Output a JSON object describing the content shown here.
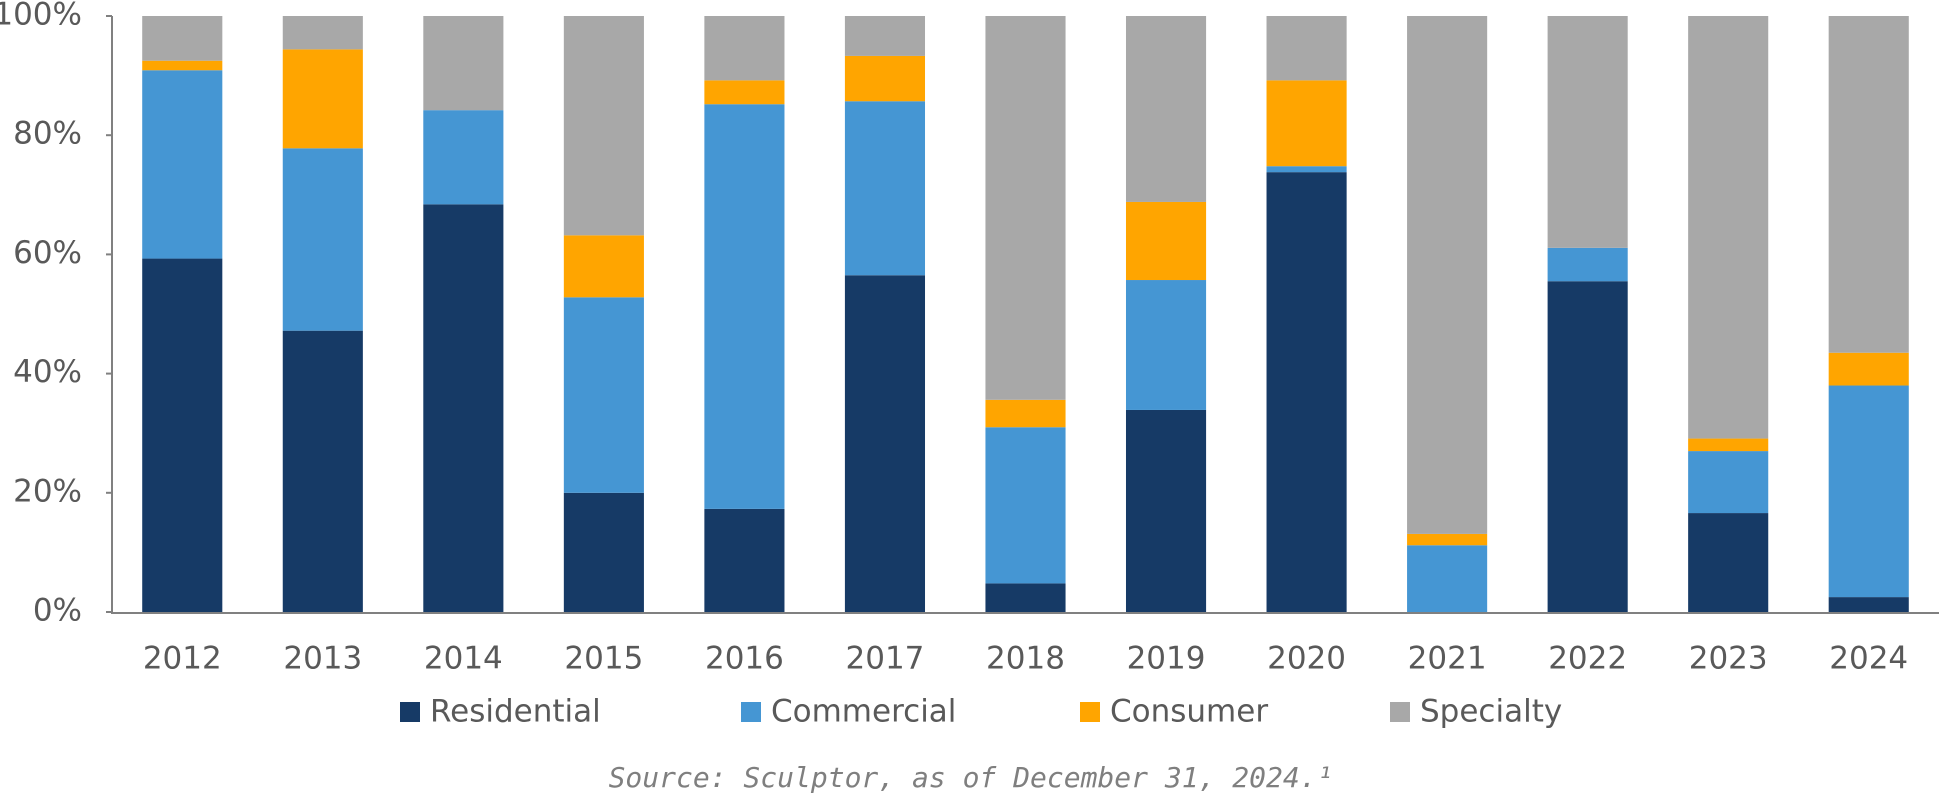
{
  "chart_data": {
    "type": "stacked-bar",
    "categories": [
      "2012",
      "2013",
      "2014",
      "2015",
      "2016",
      "2017",
      "2018",
      "2019",
      "2020",
      "2021",
      "2022",
      "2023",
      "2024"
    ],
    "series": [
      {
        "name": "Residential",
        "color": "#163a66",
        "values": [
          59.3,
          47.2,
          68.4,
          20,
          17.3,
          56.5,
          4.8,
          33.9,
          73.8,
          0,
          55.5,
          16.6,
          2.5
        ]
      },
      {
        "name": "Commercial",
        "color": "#4596d3",
        "values": [
          31.6,
          30.6,
          15.8,
          32.8,
          67.9,
          29.2,
          26.2,
          21.8,
          1,
          11.2,
          5.6,
          10.4,
          35.5
        ]
      },
      {
        "name": "Consumer",
        "color": "#ffa500",
        "values": [
          1.6,
          16.6,
          0,
          10.4,
          4,
          7.6,
          4.6,
          13.1,
          14.4,
          1.9,
          0,
          2.1,
          5.5
        ]
      },
      {
        "name": "Specialty",
        "color": "#a8a8a8",
        "values": [
          7.5,
          5.6,
          15.8,
          36.8,
          10.8,
          6.7,
          64.4,
          31.2,
          10.8,
          86.9,
          38.9,
          70.9,
          56.5
        ]
      }
    ],
    "ylim": [
      0,
      100
    ],
    "yticks": [
      {
        "value": 0,
        "label": "0%"
      },
      {
        "value": 20,
        "label": "20%"
      },
      {
        "value": 40,
        "label": "40%"
      },
      {
        "value": 60,
        "label": "60%"
      },
      {
        "value": 80,
        "label": "80%"
      },
      {
        "value": 100,
        "label": "100%"
      }
    ],
    "source": "Source: Sculptor, as of December 31, 2024.¹"
  }
}
